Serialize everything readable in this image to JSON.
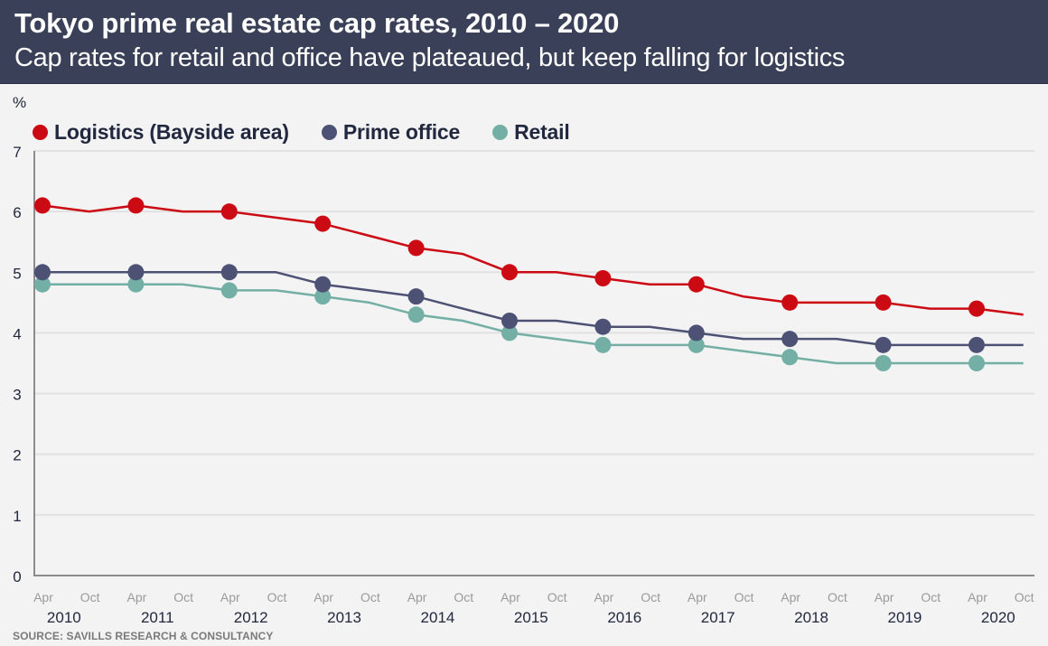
{
  "header": {
    "title": "Tokyo prime real estate cap rates, 2010 – 2020",
    "subtitle": "Cap rates for retail and office have plateaued, but keep falling for logistics"
  },
  "footer": {
    "source": "SOURCE: SAVILLS RESEARCH & CONSULTANCY"
  },
  "chart_data": {
    "type": "line",
    "title": "Tokyo prime real estate cap rates, 2010 – 2020",
    "subtitle": "Cap rates for retail and office have plateaued, but keep falling for logistics",
    "xlabel": "",
    "ylabel": "%",
    "ylim": [
      0,
      7
    ],
    "yticks": [
      "0",
      "1",
      "2",
      "3",
      "4",
      "5",
      "6",
      "7"
    ],
    "grid": true,
    "legend_position": "top-left",
    "x": [
      "Apr 2010",
      "Oct 2010",
      "Apr 2011",
      "Oct 2011",
      "Apr 2012",
      "Oct 2012",
      "Apr 2013",
      "Oct 2013",
      "Apr 2014",
      "Oct 2014",
      "Apr 2015",
      "Oct 2015",
      "Apr 2016",
      "Oct 2016",
      "Apr 2017",
      "Oct 2017",
      "Apr 2018",
      "Oct 2018",
      "Apr 2019",
      "Oct 2019",
      "Apr 2020",
      "Oct 2020"
    ],
    "x_tick_labels": [
      "Apr",
      "Oct",
      "Apr",
      "Oct",
      "Apr",
      "Oct",
      "Apr",
      "Oct",
      "Apr",
      "Oct",
      "Apr",
      "Oct",
      "Apr",
      "Oct",
      "Apr",
      "Oct",
      "Apr",
      "Oct",
      "Apr",
      "Oct",
      "Apr",
      "Oct"
    ],
    "year_labels": [
      "2010",
      "2011",
      "2012",
      "2013",
      "2014",
      "2015",
      "2016",
      "2017",
      "2018",
      "2019",
      "2020"
    ],
    "marker_note": "Markers drawn on April data points only",
    "series": [
      {
        "name": "Logistics (Bayside area)",
        "color": "#cc0a14",
        "values": [
          6.1,
          6.0,
          6.1,
          6.0,
          6.0,
          5.9,
          5.8,
          5.6,
          5.4,
          5.3,
          5.0,
          5.0,
          4.9,
          4.8,
          4.8,
          4.6,
          4.5,
          4.5,
          4.5,
          4.4,
          4.4,
          4.3
        ]
      },
      {
        "name": "Prime office",
        "color": "#4d5274",
        "values": [
          5.0,
          5.0,
          5.0,
          5.0,
          5.0,
          5.0,
          4.8,
          4.7,
          4.6,
          4.4,
          4.2,
          4.2,
          4.1,
          4.1,
          4.0,
          3.9,
          3.9,
          3.9,
          3.8,
          3.8,
          3.8,
          3.8
        ]
      },
      {
        "name": "Retail",
        "color": "#73afa5",
        "values": [
          4.8,
          4.8,
          4.8,
          4.8,
          4.7,
          4.7,
          4.6,
          4.5,
          4.3,
          4.2,
          4.0,
          3.9,
          3.8,
          3.8,
          3.8,
          3.7,
          3.6,
          3.5,
          3.5,
          3.5,
          3.5,
          3.5
        ]
      }
    ]
  }
}
